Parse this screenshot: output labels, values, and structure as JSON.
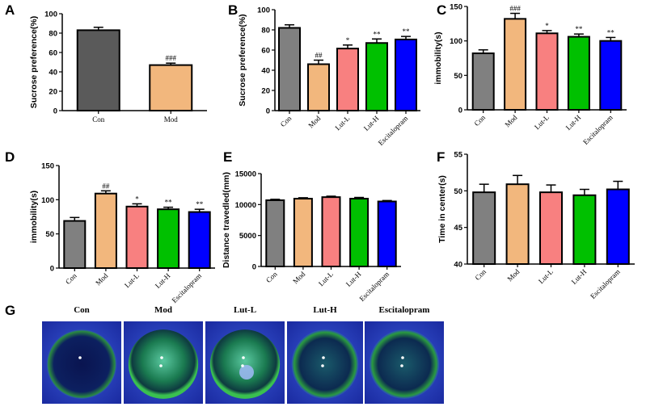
{
  "colors": {
    "Con_A": "#5a5a5a",
    "Con": "#808080",
    "Mod": "#f2b77d",
    "Lut-L": "#f88080",
    "Lut-H": "#00c000",
    "Escitalopram": "#0000ff"
  },
  "chart_data": [
    {
      "panel": "A",
      "type": "bar",
      "ylabel": "Sucrose preference(%)",
      "ylim": [
        0,
        100
      ],
      "yticks": [
        0,
        20,
        40,
        60,
        80,
        100
      ],
      "categories": [
        "Con",
        "Mod"
      ],
      "values": [
        83,
        47
      ],
      "error": [
        3,
        2
      ],
      "annotations": [
        "",
        "###"
      ]
    },
    {
      "panel": "B",
      "type": "bar",
      "ylabel": "Sucrose preference(%)",
      "ylim": [
        0,
        100
      ],
      "yticks": [
        0,
        20,
        40,
        60,
        80,
        100
      ],
      "categories": [
        "Con",
        "Mod",
        "Lut-L",
        "Lut-H",
        "Escitalopram"
      ],
      "values": [
        82,
        46,
        61.5,
        67,
        70.5
      ],
      "error": [
        3,
        4,
        3.5,
        4,
        3
      ],
      "annotations": [
        "",
        "##",
        "*",
        "**",
        "**"
      ]
    },
    {
      "panel": "C",
      "type": "bar",
      "ylabel": "immobility(s)",
      "ylim": [
        0,
        150
      ],
      "yticks": [
        0,
        50,
        100,
        150
      ],
      "categories": [
        "Con",
        "Mod",
        "Lut-L",
        "Lut-H",
        "Escitalopram"
      ],
      "values": [
        82,
        132,
        111,
        106,
        100
      ],
      "error": [
        5,
        8,
        4,
        4,
        5
      ],
      "annotations": [
        "",
        "###",
        "*",
        "**",
        "**"
      ]
    },
    {
      "panel": "D",
      "type": "bar",
      "ylabel": "immobility(s)",
      "ylim": [
        0,
        150
      ],
      "yticks": [
        0,
        50,
        100,
        150
      ],
      "categories": [
        "Con",
        "Mod",
        "Lut-L",
        "Lut-H",
        "Escitalopram"
      ],
      "values": [
        69,
        109,
        90,
        86,
        82
      ],
      "error": [
        5,
        4,
        4,
        3,
        4
      ],
      "annotations": [
        "",
        "##",
        "*",
        "**",
        "**"
      ]
    },
    {
      "panel": "E",
      "type": "bar",
      "ylabel": "Distance travedled(mm)",
      "ylim": [
        0,
        15000
      ],
      "yticks": [
        0,
        5000,
        10000,
        15000
      ],
      "categories": [
        "Con",
        "Mod",
        "Lut-L",
        "Lut-H",
        "Escitalopram"
      ],
      "values": [
        10700,
        10950,
        11200,
        10950,
        10500
      ],
      "error": [
        150,
        150,
        150,
        200,
        150
      ],
      "annotations": [
        "",
        "",
        "",
        "",
        ""
      ]
    },
    {
      "panel": "F",
      "type": "bar",
      "ylabel": "Time in center(s)",
      "ylim": [
        40,
        55
      ],
      "yticks": [
        40,
        45,
        50,
        55
      ],
      "categories": [
        "Con",
        "Mod",
        "Lut-L",
        "Lut-H",
        "Escitalopram"
      ],
      "values": [
        49.8,
        50.9,
        49.8,
        49.4,
        50.2
      ],
      "error": [
        1.1,
        1.2,
        1.0,
        0.8,
        1.1
      ],
      "annotations": [
        "",
        "",
        "",
        "",
        ""
      ]
    }
  ],
  "panel_g": {
    "label": "G",
    "images": [
      "Con",
      "Mod",
      "Lut-L",
      "Lut-H",
      "Escitalopram"
    ]
  }
}
